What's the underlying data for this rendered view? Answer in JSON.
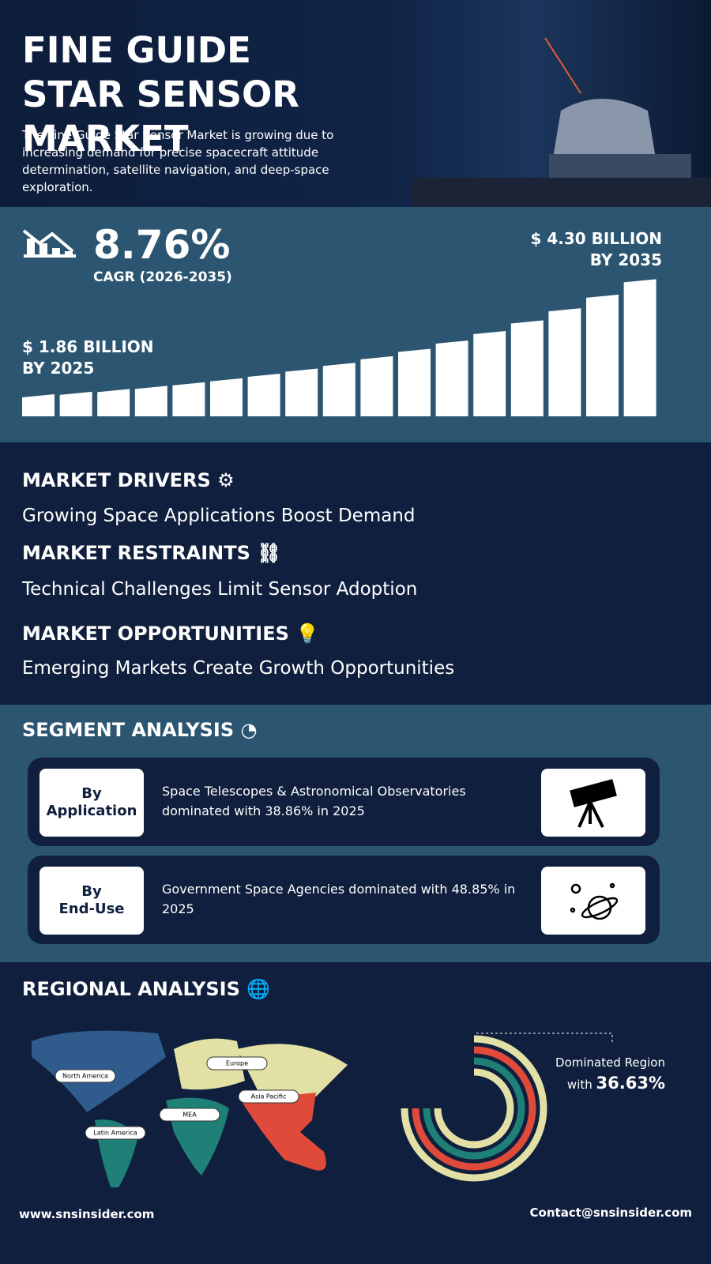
{
  "header": {
    "title": "FINE GUIDE STAR SENSOR MARKET",
    "description": "The Fine Guide Star Sensor Market is growing due to increasing demand for precise spacecraft attitude determination, satellite navigation, and deep-space exploration."
  },
  "growth": {
    "cagr": "8.76%",
    "cagr_label": "CAGR (2026-2035)",
    "start_value": "$ 1.86 BILLION",
    "start_year": "BY 2025",
    "end_value": "$ 4.30 BILLION",
    "end_year": "BY 2035"
  },
  "dynamics": [
    {
      "heading": "MARKET DRIVERS",
      "text": "Growing Space Applications Boost Demand"
    },
    {
      "heading": "MARKET RESTRAINTS",
      "text": "Technical Challenges Limit Sensor Adoption"
    },
    {
      "heading": "MARKET OPPORTUNITIES",
      "text": "Emerging Markets Create Growth Opportunities"
    }
  ],
  "segment": {
    "title": "SEGMENT ANALYSIS",
    "items": [
      {
        "label": [
          "By",
          "Application"
        ],
        "text": "Space Telescopes & Astronomical Observatories dominated with 38.86% in 2025"
      },
      {
        "label": [
          "By",
          "End-Use"
        ],
        "text": "Government Space Agencies dominated with 48.85% in 2025"
      }
    ]
  },
  "regional": {
    "title": "REGIONAL ANALYSIS",
    "regions": [
      "North America",
      "Europe",
      "Asia Pacific",
      "MEA",
      "Latin America"
    ],
    "dominated_label": "Dominated Region",
    "dominated_prefix": "with",
    "dominated_value": "36.63%"
  },
  "footer": {
    "website": "www.snsinsider.com",
    "contact": "Contact@snsinsider.com"
  }
}
